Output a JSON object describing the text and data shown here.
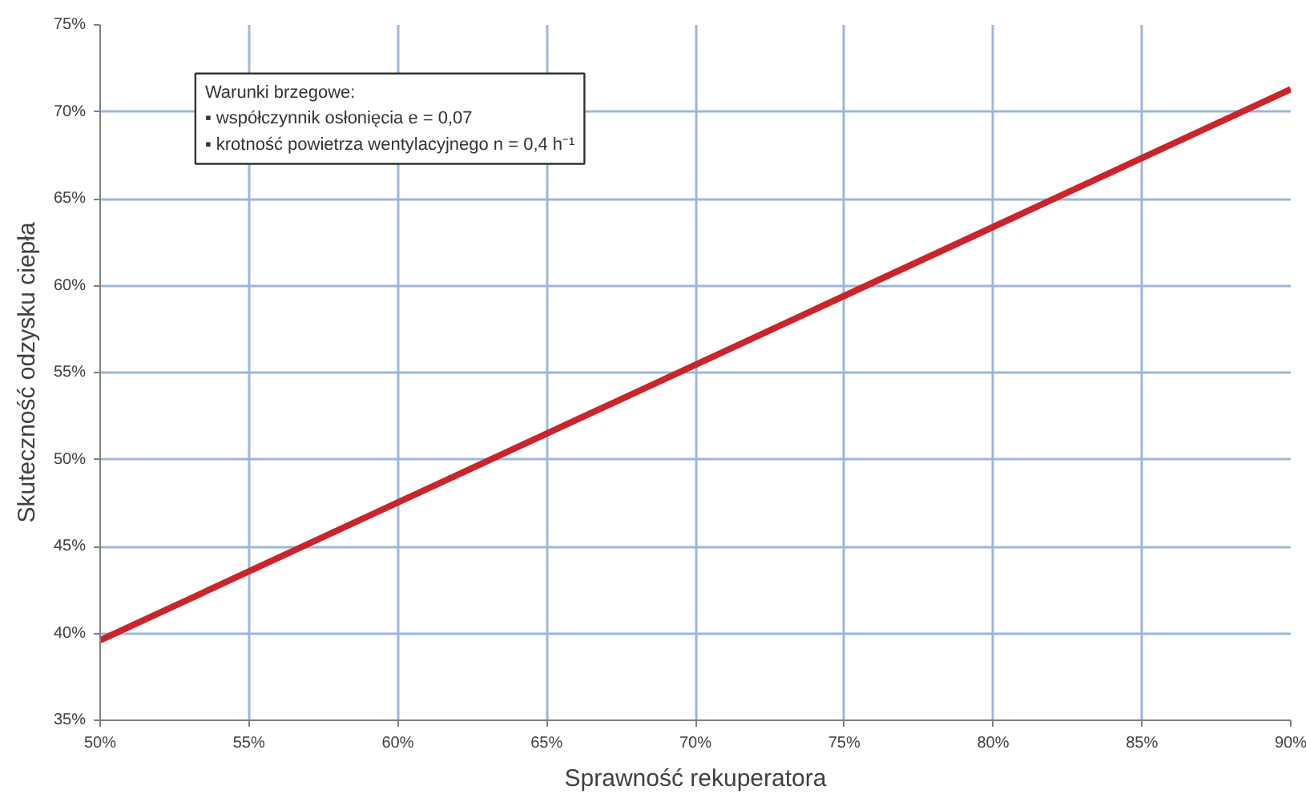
{
  "chart_data": {
    "type": "line",
    "xlabel": "Sprawność rekuperatora",
    "ylabel": "Skuteczność odzysku ciepła",
    "x": [
      50,
      90
    ],
    "series": [
      {
        "color": "#c9252b",
        "values": [
          39.6,
          71.3
        ]
      }
    ],
    "xlim": [
      50,
      90
    ],
    "ylim": [
      35,
      75
    ],
    "xticks": [
      {
        "value": 50,
        "label": "50%"
      },
      {
        "value": 55,
        "label": "55%"
      },
      {
        "value": 60,
        "label": "60%"
      },
      {
        "value": 65,
        "label": "65%"
      },
      {
        "value": 70,
        "label": "70%"
      },
      {
        "value": 75,
        "label": "75%"
      },
      {
        "value": 80,
        "label": "80%"
      },
      {
        "value": 85,
        "label": "85%"
      },
      {
        "value": 90,
        "label": "90%"
      }
    ],
    "yticks": [
      {
        "value": 35,
        "label": "35%"
      },
      {
        "value": 40,
        "label": "40%"
      },
      {
        "value": 45,
        "label": "45%"
      },
      {
        "value": 50,
        "label": "50%"
      },
      {
        "value": 55,
        "label": "55%"
      },
      {
        "value": 60,
        "label": "60%"
      },
      {
        "value": 65,
        "label": "65%"
      },
      {
        "value": 70,
        "label": "70%"
      },
      {
        "value": 75,
        "label": "75%"
      }
    ],
    "grid": true,
    "line_style": "solid",
    "annotations": [
      "Warunki brzegowe:",
      "▪ współczynnik osłonięcia e = 0,07",
      "▪ krotność powietrza wentylacyjnego n = 0,4 h⁻¹"
    ]
  }
}
